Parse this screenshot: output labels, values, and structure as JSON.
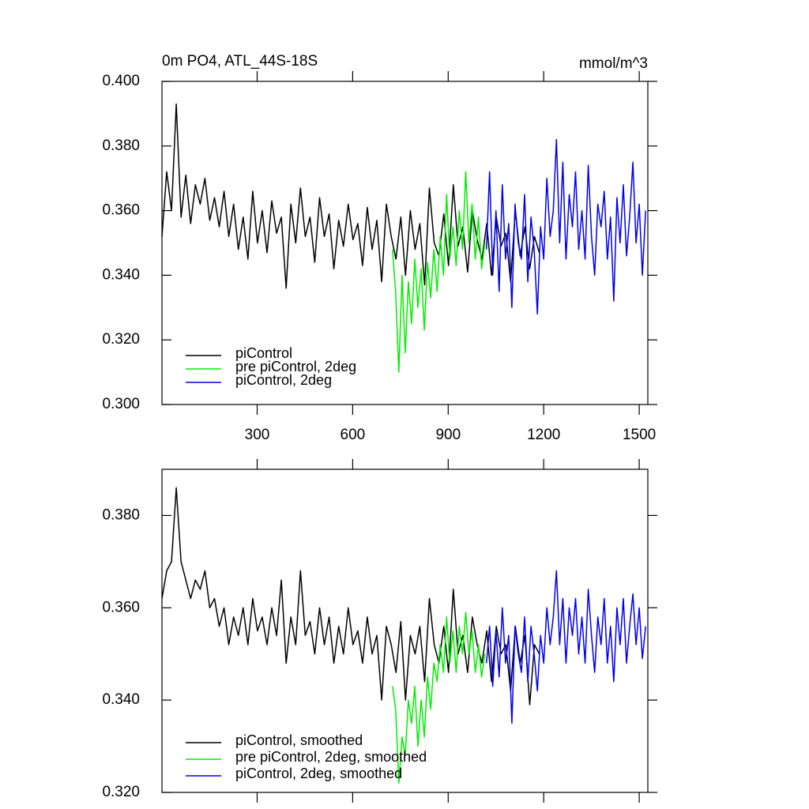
{
  "chart_data": [
    {
      "type": "line",
      "title": "0m PO4, ATL_44S-18S",
      "units": "mmol/m^3",
      "xlim": [
        1,
        1527
      ],
      "xticks": [
        300,
        600,
        900,
        1200,
        1500
      ],
      "show_xtick_labels": true,
      "ylim": [
        0.3,
        0.4
      ],
      "yticks": [
        {
          "value": 0.3,
          "label": "0.300"
        },
        {
          "value": 0.32,
          "label": "0.320"
        },
        {
          "value": 0.34,
          "label": "0.340"
        },
        {
          "value": 0.36,
          "label": "0.360"
        },
        {
          "value": 0.38,
          "label": "0.380"
        },
        {
          "value": 0.4,
          "label": "0.400"
        }
      ],
      "legend": "lower left",
      "series": [
        {
          "name": "piControl",
          "color": "#000000",
          "x": [
            1,
            16,
            31,
            46,
            61,
            76,
            91,
            106,
            121,
            136,
            151,
            166,
            181,
            196,
            211,
            226,
            241,
            256,
            271,
            286,
            301,
            316,
            331,
            346,
            361,
            376,
            391,
            406,
            421,
            436,
            451,
            466,
            481,
            496,
            511,
            526,
            541,
            556,
            571,
            586,
            601,
            616,
            631,
            646,
            661,
            676,
            691,
            706,
            721,
            736,
            751,
            766,
            781,
            796,
            811,
            826,
            841,
            856,
            871,
            886,
            901,
            916,
            931,
            946,
            961,
            976,
            991,
            1006,
            1021,
            1036,
            1051,
            1066,
            1081,
            1096,
            1111,
            1126,
            1141,
            1156,
            1171,
            1186
          ],
          "values": [
            0.352,
            0.372,
            0.36,
            0.393,
            0.358,
            0.371,
            0.356,
            0.368,
            0.362,
            0.37,
            0.357,
            0.364,
            0.355,
            0.366,
            0.352,
            0.362,
            0.348,
            0.358,
            0.345,
            0.366,
            0.35,
            0.36,
            0.347,
            0.363,
            0.353,
            0.358,
            0.336,
            0.362,
            0.35,
            0.367,
            0.352,
            0.358,
            0.344,
            0.364,
            0.352,
            0.359,
            0.342,
            0.357,
            0.349,
            0.362,
            0.351,
            0.356,
            0.343,
            0.361,
            0.348,
            0.357,
            0.338,
            0.362,
            0.352,
            0.345,
            0.358,
            0.34,
            0.36,
            0.348,
            0.356,
            0.337,
            0.367,
            0.35,
            0.346,
            0.359,
            0.343,
            0.368,
            0.349,
            0.355,
            0.341,
            0.36,
            0.351,
            0.345,
            0.356,
            0.34,
            0.358,
            0.349,
            0.353,
            0.338,
            0.36,
            0.346,
            0.355,
            0.342,
            0.352,
            0.347
          ]
        },
        {
          "name": "pre piControl, 2deg",
          "color": "#00ee00",
          "x": [
            725,
            735,
            745,
            755,
            765,
            775,
            785,
            795,
            805,
            815,
            825,
            835,
            845,
            855,
            865,
            875,
            885,
            895,
            905,
            915,
            925,
            935,
            945,
            955,
            965,
            975,
            985,
            995,
            1005,
            1015
          ],
          "values": [
            0.348,
            0.335,
            0.31,
            0.34,
            0.316,
            0.338,
            0.325,
            0.345,
            0.33,
            0.342,
            0.323,
            0.344,
            0.333,
            0.348,
            0.335,
            0.352,
            0.34,
            0.365,
            0.345,
            0.355,
            0.343,
            0.36,
            0.348,
            0.372,
            0.35,
            0.362,
            0.345,
            0.358,
            0.342,
            0.35
          ]
        },
        {
          "name": "piControl, 2deg",
          "color": "#0000ee",
          "x": [
            1020,
            1030,
            1040,
            1050,
            1060,
            1070,
            1080,
            1090,
            1100,
            1110,
            1120,
            1130,
            1140,
            1150,
            1160,
            1170,
            1180,
            1190,
            1200,
            1210,
            1220,
            1230,
            1240,
            1250,
            1260,
            1270,
            1280,
            1290,
            1300,
            1310,
            1320,
            1330,
            1340,
            1350,
            1360,
            1370,
            1380,
            1390,
            1400,
            1410,
            1420,
            1430,
            1440,
            1450,
            1460,
            1470,
            1480,
            1490,
            1500,
            1510,
            1520
          ],
          "values": [
            0.348,
            0.372,
            0.34,
            0.36,
            0.335,
            0.368,
            0.345,
            0.356,
            0.33,
            0.362,
            0.35,
            0.345,
            0.365,
            0.338,
            0.358,
            0.348,
            0.328,
            0.355,
            0.345,
            0.37,
            0.352,
            0.36,
            0.382,
            0.35,
            0.375,
            0.345,
            0.365,
            0.355,
            0.372,
            0.348,
            0.36,
            0.345,
            0.374,
            0.352,
            0.34,
            0.362,
            0.355,
            0.366,
            0.345,
            0.358,
            0.332,
            0.364,
            0.35,
            0.368,
            0.346,
            0.358,
            0.375,
            0.35,
            0.362,
            0.34,
            0.36
          ]
        }
      ]
    },
    {
      "type": "line",
      "xlim": [
        1,
        1527
      ],
      "xticks": [
        300,
        600,
        900,
        1200,
        1500
      ],
      "show_xtick_labels": false,
      "ylim": [
        0.32,
        0.39
      ],
      "yticks": [
        {
          "value": 0.32,
          "label": "0.320"
        },
        {
          "value": 0.34,
          "label": "0.340"
        },
        {
          "value": 0.36,
          "label": "0.360"
        },
        {
          "value": 0.38,
          "label": "0.380"
        }
      ],
      "legend": "lower left",
      "series": [
        {
          "name": "piControl, smoothed",
          "color": "#000000",
          "x": [
            1,
            16,
            31,
            46,
            61,
            76,
            91,
            106,
            121,
            136,
            151,
            166,
            181,
            196,
            211,
            226,
            241,
            256,
            271,
            286,
            301,
            316,
            331,
            346,
            361,
            376,
            391,
            406,
            421,
            436,
            451,
            466,
            481,
            496,
            511,
            526,
            541,
            556,
            571,
            586,
            601,
            616,
            631,
            646,
            661,
            676,
            691,
            706,
            721,
            736,
            751,
            766,
            781,
            796,
            811,
            826,
            841,
            856,
            871,
            886,
            901,
            916,
            931,
            946,
            961,
            976,
            991,
            1006,
            1021,
            1036,
            1051,
            1066,
            1081,
            1096,
            1111,
            1126,
            1141,
            1156,
            1171,
            1186
          ],
          "values": [
            0.362,
            0.368,
            0.37,
            0.386,
            0.37,
            0.366,
            0.362,
            0.366,
            0.364,
            0.368,
            0.36,
            0.362,
            0.356,
            0.36,
            0.352,
            0.358,
            0.354,
            0.36,
            0.352,
            0.362,
            0.355,
            0.358,
            0.352,
            0.36,
            0.354,
            0.366,
            0.348,
            0.358,
            0.352,
            0.368,
            0.354,
            0.357,
            0.35,
            0.36,
            0.352,
            0.358,
            0.348,
            0.356,
            0.35,
            0.36,
            0.352,
            0.355,
            0.348,
            0.358,
            0.35,
            0.354,
            0.34,
            0.356,
            0.352,
            0.346,
            0.357,
            0.34,
            0.354,
            0.35,
            0.356,
            0.344,
            0.362,
            0.352,
            0.348,
            0.356,
            0.346,
            0.364,
            0.35,
            0.354,
            0.346,
            0.358,
            0.352,
            0.348,
            0.355,
            0.344,
            0.356,
            0.35,
            0.352,
            0.342,
            0.356,
            0.348,
            0.354,
            0.339,
            0.352,
            0.35
          ]
        },
        {
          "name": "pre piControl, 2deg, smoothed",
          "color": "#00ee00",
          "x": [
            725,
            735,
            745,
            755,
            765,
            775,
            785,
            795,
            805,
            815,
            825,
            835,
            845,
            855,
            865,
            875,
            885,
            895,
            905,
            915,
            925,
            935,
            945,
            955,
            965,
            975,
            985,
            995,
            1005,
            1015
          ],
          "values": [
            0.343,
            0.338,
            0.322,
            0.332,
            0.328,
            0.34,
            0.335,
            0.343,
            0.33,
            0.34,
            0.332,
            0.345,
            0.338,
            0.348,
            0.344,
            0.352,
            0.346,
            0.358,
            0.348,
            0.355,
            0.346,
            0.356,
            0.35,
            0.359,
            0.35,
            0.355,
            0.346,
            0.352,
            0.345,
            0.35
          ]
        },
        {
          "name": "piControl, 2deg, smoothed",
          "color": "#0000ee",
          "x": [
            1020,
            1030,
            1040,
            1050,
            1060,
            1070,
            1080,
            1090,
            1100,
            1110,
            1120,
            1130,
            1140,
            1150,
            1160,
            1170,
            1180,
            1190,
            1200,
            1210,
            1220,
            1230,
            1240,
            1250,
            1260,
            1270,
            1280,
            1290,
            1300,
            1310,
            1320,
            1330,
            1340,
            1350,
            1360,
            1370,
            1380,
            1390,
            1400,
            1410,
            1420,
            1430,
            1440,
            1450,
            1460,
            1470,
            1480,
            1490,
            1500,
            1510,
            1520
          ],
          "values": [
            0.348,
            0.356,
            0.343,
            0.355,
            0.345,
            0.36,
            0.348,
            0.354,
            0.335,
            0.356,
            0.35,
            0.346,
            0.358,
            0.344,
            0.356,
            0.35,
            0.342,
            0.354,
            0.348,
            0.36,
            0.352,
            0.358,
            0.368,
            0.352,
            0.362,
            0.348,
            0.36,
            0.354,
            0.362,
            0.35,
            0.358,
            0.348,
            0.364,
            0.354,
            0.346,
            0.358,
            0.352,
            0.362,
            0.348,
            0.356,
            0.344,
            0.36,
            0.352,
            0.362,
            0.348,
            0.356,
            0.363,
            0.352,
            0.36,
            0.349,
            0.356
          ]
        }
      ]
    }
  ]
}
